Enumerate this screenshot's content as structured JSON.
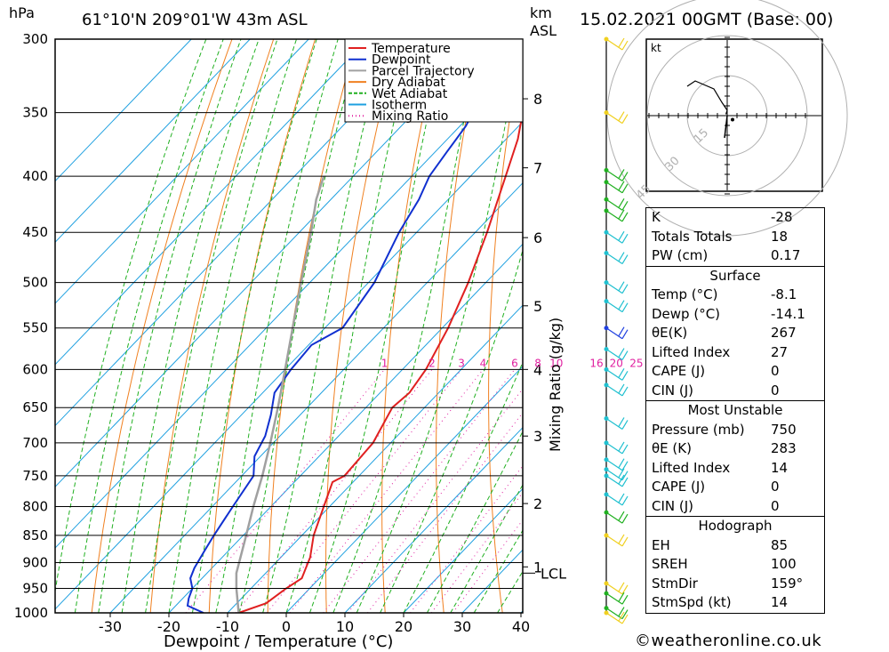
{
  "header": {
    "location": "61°10'N 209°01'W 43m ASL",
    "datetime": "15.02.2021 00GMT (Base: 00)",
    "left_unit": "hPa",
    "right_unit_km": "km",
    "right_unit_asl": "ASL"
  },
  "chart_data": {
    "type": "line",
    "xlabel": "Dewpoint / Temperature (°C)",
    "ylabel": "hPa",
    "y2label": "Mixing Ratio (g/kg)",
    "x_ticks": [
      "-30",
      "-20",
      "-10",
      "0",
      "10",
      "20",
      "30",
      "40"
    ],
    "pressure_levels": [
      300,
      350,
      400,
      450,
      500,
      550,
      600,
      650,
      700,
      750,
      800,
      850,
      900,
      950,
      1000
    ],
    "km_ticks": [
      {
        "km": "1",
        "p": 908
      },
      {
        "km": "2",
        "p": 795
      },
      {
        "km": "3",
        "p": 690
      },
      {
        "km": "4",
        "p": 600
      },
      {
        "km": "5",
        "p": 525
      },
      {
        "km": "6",
        "p": 455
      },
      {
        "km": "7",
        "p": 393
      },
      {
        "km": "8",
        "p": 340
      }
    ],
    "lcl_label": "LCL",
    "lcl_pressure": 920,
    "mixing_ratio_labels": [
      "1",
      "2",
      "3",
      "4",
      "6",
      "8",
      "10",
      "16",
      "20",
      "25"
    ],
    "legend": [
      "Temperature",
      "Dewpoint",
      "Parcel Trajectory",
      "Dry Adiabat",
      "Wet Adiabat",
      "Isotherm",
      "Mixing Ratio"
    ],
    "series": [
      {
        "name": "Temperature",
        "color": "#e02020",
        "points": [
          [
            1000,
            -8.1
          ],
          [
            980,
            -5
          ],
          [
            950,
            -4
          ],
          [
            930,
            -3
          ],
          [
            910,
            -4
          ],
          [
            890,
            -5
          ],
          [
            850,
            -8
          ],
          [
            800,
            -11
          ],
          [
            760,
            -13.5
          ],
          [
            750,
            -12.5
          ],
          [
            700,
            -13
          ],
          [
            650,
            -15.5
          ],
          [
            630,
            -15
          ],
          [
            600,
            -16
          ],
          [
            550,
            -19
          ],
          [
            500,
            -23
          ],
          [
            450,
            -28
          ],
          [
            400,
            -34
          ],
          [
            370,
            -38
          ],
          [
            350,
            -41.5
          ],
          [
            320,
            -45
          ],
          [
            300,
            -48
          ]
        ]
      },
      {
        "name": "Dewpoint",
        "color": "#1030d0",
        "points": [
          [
            1000,
            -14.1
          ],
          [
            985,
            -18
          ],
          [
            970,
            -19
          ],
          [
            950,
            -20
          ],
          [
            930,
            -22
          ],
          [
            910,
            -23
          ],
          [
            880,
            -24
          ],
          [
            850,
            -25
          ],
          [
            800,
            -26.5
          ],
          [
            750,
            -28
          ],
          [
            720,
            -31
          ],
          [
            690,
            -32.5
          ],
          [
            660,
            -35
          ],
          [
            630,
            -38
          ],
          [
            600,
            -39
          ],
          [
            570,
            -39.5
          ],
          [
            550,
            -37
          ],
          [
            500,
            -39
          ],
          [
            450,
            -43
          ],
          [
            420,
            -45
          ],
          [
            400,
            -47
          ],
          [
            380,
            -48
          ],
          [
            360,
            -49
          ],
          [
            340,
            -51
          ],
          [
            330,
            -53
          ],
          [
            320,
            -54
          ],
          [
            310,
            -52
          ],
          [
            305,
            -54
          ],
          [
            300,
            -52
          ]
        ]
      },
      {
        "name": "Parcel Trajectory",
        "color": "#a0a0a0",
        "points": [
          [
            1000,
            -8.1
          ],
          [
            950,
            -12.5
          ],
          [
            920,
            -15
          ],
          [
            850,
            -19.5
          ],
          [
            800,
            -23
          ],
          [
            750,
            -26.5
          ],
          [
            700,
            -30.5
          ],
          [
            650,
            -35
          ],
          [
            600,
            -40
          ],
          [
            550,
            -45.5
          ],
          [
            500,
            -51.5
          ],
          [
            450,
            -58
          ],
          [
            420,
            -62.5
          ],
          [
            400,
            -65
          ]
        ]
      }
    ],
    "colors": {
      "isotherm": "#1ea0e0",
      "dry_adiabat": "#f08020",
      "wet_adiabat": "#20b020",
      "mixing_ratio": "#e020a0",
      "grid": "#000000"
    }
  },
  "hodograph": {
    "unit": "kt",
    "rings": [
      "15",
      "30",
      "45"
    ],
    "points": [
      [
        -0.5,
        -0.5
      ],
      [
        0,
        -2
      ],
      [
        -2,
        -5
      ],
      [
        -5,
        -10
      ],
      [
        -12,
        -13
      ],
      [
        -15,
        -11
      ]
    ],
    "storm_motion": [
      2,
      1.5
    ]
  },
  "wind_barbs": {
    "pressures": [
      300,
      350,
      395,
      405,
      420,
      430,
      450,
      470,
      500,
      520,
      550,
      575,
      600,
      620,
      665,
      700,
      725,
      740,
      750,
      780,
      810,
      850,
      940,
      960,
      990,
      1000
    ],
    "colors": [
      "#f0d020",
      "#f0d020",
      "#20b020",
      "#20b020",
      "#20b020",
      "#20b020",
      "#20c0d0",
      "#20c0d0",
      "#20c0d0",
      "#20c0d0",
      "#2040e0",
      "#20c0d0",
      "#20c0d0",
      "#20c0d0",
      "#20c0d0",
      "#20c0d0",
      "#20c0d0",
      "#20c0d0",
      "#20c0d0",
      "#20c0d0",
      "#20b020",
      "#f0d020",
      "#f0d020",
      "#20b020",
      "#20b020",
      "#f0d020"
    ]
  },
  "indices": {
    "top": [
      {
        "label": "K",
        "value": "-28"
      },
      {
        "label": "Totals Totals",
        "value": "18"
      },
      {
        "label": "PW (cm)",
        "value": "0.17"
      }
    ],
    "surface_title": "Surface",
    "surface": [
      {
        "label": "Temp (°C)",
        "value": "-8.1"
      },
      {
        "label": "Dewp (°C)",
        "value": "-14.1"
      },
      {
        "label": "θE(K)",
        "value": "267"
      },
      {
        "label": "Lifted Index",
        "value": "27"
      },
      {
        "label": "CAPE (J)",
        "value": "0"
      },
      {
        "label": "CIN (J)",
        "value": "0"
      }
    ],
    "mu_title": "Most Unstable",
    "most_unstable": [
      {
        "label": "Pressure (mb)",
        "value": "750"
      },
      {
        "label": "θE (K)",
        "value": "283"
      },
      {
        "label": "Lifted Index",
        "value": "14"
      },
      {
        "label": "CAPE (J)",
        "value": "0"
      },
      {
        "label": "CIN (J)",
        "value": "0"
      }
    ],
    "hodo_title": "Hodograph",
    "hodograph": [
      {
        "label": "EH",
        "value": "85"
      },
      {
        "label": "SREH",
        "value": "100"
      },
      {
        "label": "StmDir",
        "value": "159°"
      },
      {
        "label": "StmSpd (kt)",
        "value": "14"
      }
    ]
  },
  "footer": {
    "copyright": "©weatheronline.co.uk"
  }
}
